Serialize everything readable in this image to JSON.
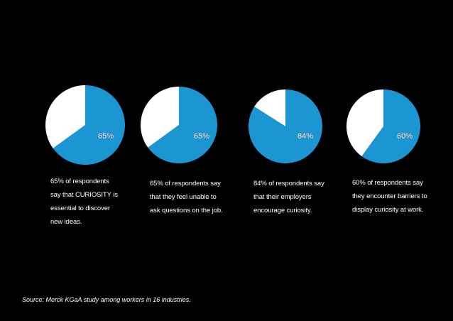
{
  "chart_data": {
    "type": "pie",
    "charts": [
      {
        "value": 65,
        "label": "65%",
        "caption_lines": [
          "65% of respondents",
          "say that CURIOSITY is",
          "essential to discover",
          "new ideas."
        ]
      },
      {
        "value": 65,
        "label": "65%",
        "caption_lines": [
          "65% of respondents say",
          "that they feel unable to",
          "ask questions on the job."
        ]
      },
      {
        "value": 84,
        "label": "84%",
        "caption_lines": [
          "84% of respondents say",
          "that their employers",
          "encourage curiosity."
        ]
      },
      {
        "value": 60,
        "label": "60%",
        "caption_lines": [
          "60% of respondents say",
          "they encounter barriers to",
          "display curiosity at work."
        ]
      }
    ],
    "colors": {
      "value": "#1b96d3",
      "remainder": "#ffffff",
      "background": "#000000"
    }
  },
  "source": "Source: Merck KGaA study among workers in 16 industries."
}
